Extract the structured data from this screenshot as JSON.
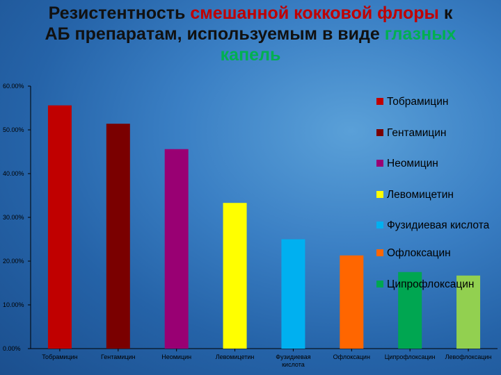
{
  "title": {
    "line1_pre": "Резистентность",
    "line1_hl": "смешанной кокковой флоры",
    "line1_post": "к",
    "line2_pre": "АБ препаратам, используемым в виде",
    "line2_hl": "глазных",
    "line3_hl": "капель"
  },
  "chart_data": {
    "type": "bar",
    "categories": [
      "Тобрамицин",
      "Гентамицин",
      "Неомицин",
      "Левомицетин",
      "Фузидиевая кислота",
      "Офлоксацин",
      "Ципрофлоксацин",
      "Левофлоксацин"
    ],
    "values": [
      55.6,
      51.4,
      45.6,
      33.3,
      25.0,
      21.3,
      17.5,
      16.7
    ],
    "colors": [
      "#c00000",
      "#7a0000",
      "#990073",
      "#ffff00",
      "#00b0f0",
      "#ff6600",
      "#00a651",
      "#92d050"
    ],
    "ylim": [
      0,
      60
    ],
    "yticks": [
      "0.00%",
      "10.00%",
      "20.00%",
      "30.00%",
      "40.00%",
      "50.00%",
      "60.00%"
    ],
    "xlabel": "",
    "ylabel": "",
    "grid": false,
    "legend": {
      "position": "right",
      "entries": [
        "Тобрамицин",
        "Гентамицин",
        "Неомицин",
        "Левомицетин",
        "Фузидиевая кислота",
        "Офлоксацин",
        "Ципрофлоксацин"
      ],
      "colors": [
        "#c00000",
        "#7a0000",
        "#990073",
        "#ffff00",
        "#00b0f0",
        "#ff6600",
        "#00a651"
      ]
    }
  }
}
